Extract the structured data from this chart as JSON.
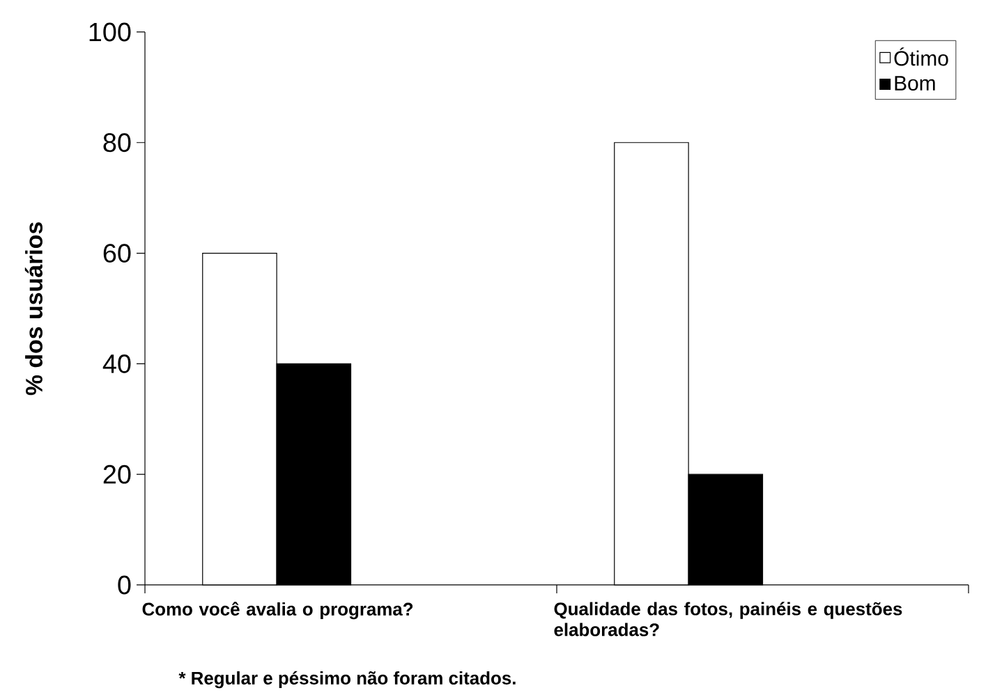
{
  "chart_data": {
    "type": "bar",
    "ylabel": "% dos usuários",
    "categories": [
      "Como você avalia o programa?",
      "Qualidade das fotos, painéis e questões elaboradas?"
    ],
    "series": [
      {
        "name": "Ótimo",
        "color": "#ffffff",
        "values": [
          60,
          80
        ]
      },
      {
        "name": "Bom",
        "color": "#000000",
        "values": [
          40,
          20
        ]
      }
    ],
    "ylim": [
      0,
      100
    ],
    "yticks": [
      0,
      20,
      40,
      60,
      80,
      100
    ],
    "legend": "top right",
    "grid": false,
    "annotations": [
      "* Regular e péssimo não foram citados."
    ]
  }
}
